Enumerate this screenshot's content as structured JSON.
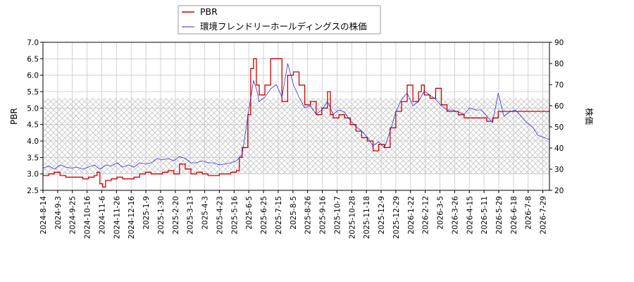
{
  "chart_data": {
    "type": "line",
    "title": "",
    "xlabel": "",
    "ylabel_left": "PBR",
    "ylabel_right": "株価",
    "ylim_left": [
      2.5,
      7.0
    ],
    "ylim_right": [
      20,
      90
    ],
    "yticks_left": [
      "2.5",
      "3.0",
      "3.5",
      "4.0",
      "4.5",
      "5.0",
      "5.5",
      "6.0",
      "6.5",
      "7.0"
    ],
    "yticks_right": [
      "20",
      "30",
      "40",
      "50",
      "60",
      "70",
      "80",
      "90"
    ],
    "x_categories": [
      "2024-8-14",
      "2024-9-3",
      "2024-9-25",
      "2024-10-16",
      "2024-11-6",
      "2024-11-26",
      "2024-12-16",
      "2025-1-9",
      "2025-1-30",
      "2025-2-20",
      "2025-3-13",
      "2025-4-3",
      "2025-4-23",
      "2025-5-16",
      "2025-6-5",
      "2025-6-25",
      "2025-7-15",
      "2025-8-5",
      "2025-8-26",
      "2025-9-16",
      "2025-10-7",
      "2025-10-28",
      "2025-11-18",
      "2025-12-9",
      "2025-12-29",
      "2026-1-22",
      "2026-2-12",
      "2026-3-5",
      "2026-3-26",
      "2026-4-15",
      "2026-5-11",
      "2026-5-29",
      "2026-6-18",
      "2026-7-8",
      "2026-7-29"
    ],
    "grid": true,
    "hatched_band_left": [
      3.0,
      5.3
    ],
    "legend_position": "top-center",
    "series": [
      {
        "name": "PBR",
        "axis": "left",
        "color": "#cc0000",
        "values": [
          [
            0,
            2.95
          ],
          [
            1,
            3.0
          ],
          [
            2,
            3.05
          ],
          [
            3,
            2.95
          ],
          [
            4,
            2.9
          ],
          [
            5,
            2.9
          ],
          [
            6,
            2.9
          ],
          [
            7,
            2.85
          ],
          [
            8,
            2.9
          ],
          [
            9,
            2.95
          ],
          [
            9.5,
            3.05
          ],
          [
            10,
            2.7
          ],
          [
            10.5,
            2.6
          ],
          [
            11,
            2.8
          ],
          [
            12,
            2.85
          ],
          [
            13,
            2.9
          ],
          [
            14,
            2.85
          ],
          [
            15,
            2.85
          ],
          [
            16,
            2.9
          ],
          [
            17,
            3.0
          ],
          [
            18,
            3.05
          ],
          [
            19,
            3.0
          ],
          [
            20,
            3.0
          ],
          [
            21,
            3.05
          ],
          [
            22,
            3.1
          ],
          [
            23,
            3.0
          ],
          [
            24,
            3.3
          ],
          [
            25,
            3.15
          ],
          [
            26,
            3.0
          ],
          [
            27,
            3.05
          ],
          [
            28,
            3.0
          ],
          [
            29,
            2.95
          ],
          [
            30,
            2.95
          ],
          [
            31,
            3.0
          ],
          [
            32,
            3.0
          ],
          [
            33,
            3.05
          ],
          [
            34,
            3.1
          ],
          [
            34.5,
            3.5
          ],
          [
            35,
            3.8
          ],
          [
            36,
            4.8
          ],
          [
            36.5,
            6.2
          ],
          [
            37,
            6.5
          ],
          [
            37.5,
            5.7
          ],
          [
            38,
            5.4
          ],
          [
            39,
            5.7
          ],
          [
            40,
            6.5
          ],
          [
            41,
            6.5
          ],
          [
            42,
            5.2
          ],
          [
            43,
            6.0
          ],
          [
            44,
            6.1
          ],
          [
            45,
            5.7
          ],
          [
            46,
            5.1
          ],
          [
            47,
            5.2
          ],
          [
            48,
            4.8
          ],
          [
            49,
            5.0
          ],
          [
            50,
            5.5
          ],
          [
            50.5,
            4.8
          ],
          [
            51,
            4.7
          ],
          [
            52,
            4.8
          ],
          [
            53,
            4.7
          ],
          [
            54,
            4.5
          ],
          [
            55,
            4.3
          ],
          [
            56,
            4.1
          ],
          [
            57,
            4.0
          ],
          [
            58,
            3.7
          ],
          [
            59,
            3.9
          ],
          [
            60,
            3.8
          ],
          [
            61,
            4.4
          ],
          [
            62,
            4.9
          ],
          [
            63,
            5.2
          ],
          [
            64,
            5.7
          ],
          [
            65,
            5.2
          ],
          [
            66,
            5.5
          ],
          [
            66.5,
            5.7
          ],
          [
            67,
            5.4
          ],
          [
            68,
            5.3
          ],
          [
            69,
            5.6
          ],
          [
            70,
            5.1
          ],
          [
            71,
            4.9
          ],
          [
            72,
            4.9
          ],
          [
            73,
            4.8
          ],
          [
            74,
            4.7
          ],
          [
            75,
            4.7
          ],
          [
            76,
            4.7
          ],
          [
            77,
            4.7
          ],
          [
            78,
            4.6
          ],
          [
            79,
            4.7
          ],
          [
            80,
            4.9
          ],
          [
            88,
            4.9
          ],
          [
            89,
            4.6
          ]
        ]
      },
      {
        "name": "環境フレンドリーホールディングスの株価",
        "axis": "right",
        "color": "#3333cc",
        "values": [
          [
            0,
            30.5
          ],
          [
            1,
            31.5
          ],
          [
            2,
            30
          ],
          [
            3,
            32
          ],
          [
            4,
            31
          ],
          [
            5,
            30.5
          ],
          [
            6,
            31
          ],
          [
            7,
            30
          ],
          [
            8,
            31
          ],
          [
            9,
            32
          ],
          [
            10,
            30
          ],
          [
            11,
            32
          ],
          [
            12,
            31.5
          ],
          [
            13,
            33
          ],
          [
            14,
            31
          ],
          [
            15,
            32
          ],
          [
            16,
            31
          ],
          [
            17,
            33
          ],
          [
            18,
            32.5
          ],
          [
            19,
            33
          ],
          [
            20,
            35
          ],
          [
            21,
            34.5
          ],
          [
            22,
            35
          ],
          [
            23,
            34
          ],
          [
            24,
            36
          ],
          [
            25,
            35
          ],
          [
            26,
            33
          ],
          [
            27,
            33
          ],
          [
            28,
            34
          ],
          [
            29,
            33
          ],
          [
            30,
            33
          ],
          [
            31,
            32
          ],
          [
            32,
            32.5
          ],
          [
            33,
            33
          ],
          [
            34,
            34
          ],
          [
            35,
            37
          ],
          [
            36,
            55
          ],
          [
            37,
            72
          ],
          [
            37.5,
            68
          ],
          [
            38,
            62
          ],
          [
            39,
            64
          ],
          [
            40,
            68
          ],
          [
            41,
            70
          ],
          [
            42,
            64
          ],
          [
            43,
            80
          ],
          [
            44,
            70
          ],
          [
            45,
            64
          ],
          [
            46,
            59
          ],
          [
            47,
            60
          ],
          [
            48,
            56
          ],
          [
            49,
            58
          ],
          [
            50,
            62
          ],
          [
            51,
            56
          ],
          [
            52,
            58
          ],
          [
            53,
            57
          ],
          [
            54,
            53
          ],
          [
            55,
            50
          ],
          [
            56,
            48
          ],
          [
            57,
            45
          ],
          [
            58,
            41
          ],
          [
            59,
            43
          ],
          [
            60,
            40
          ],
          [
            61,
            48
          ],
          [
            62,
            57
          ],
          [
            63,
            63
          ],
          [
            64,
            66
          ],
          [
            65,
            60
          ],
          [
            66,
            62
          ],
          [
            67,
            67
          ],
          [
            68,
            65
          ],
          [
            69,
            63
          ],
          [
            70,
            60
          ],
          [
            71,
            58
          ],
          [
            72,
            58
          ],
          [
            73,
            57
          ],
          [
            74,
            56
          ],
          [
            75,
            59
          ],
          [
            76,
            58
          ],
          [
            77,
            58
          ],
          [
            78,
            55
          ],
          [
            79,
            52
          ],
          [
            80,
            66
          ],
          [
            81,
            55
          ],
          [
            82,
            57
          ],
          [
            83,
            58
          ],
          [
            84,
            55
          ],
          [
            85,
            52
          ],
          [
            86,
            50
          ],
          [
            87,
            46
          ],
          [
            88,
            45
          ],
          [
            89,
            44
          ]
        ]
      }
    ]
  }
}
